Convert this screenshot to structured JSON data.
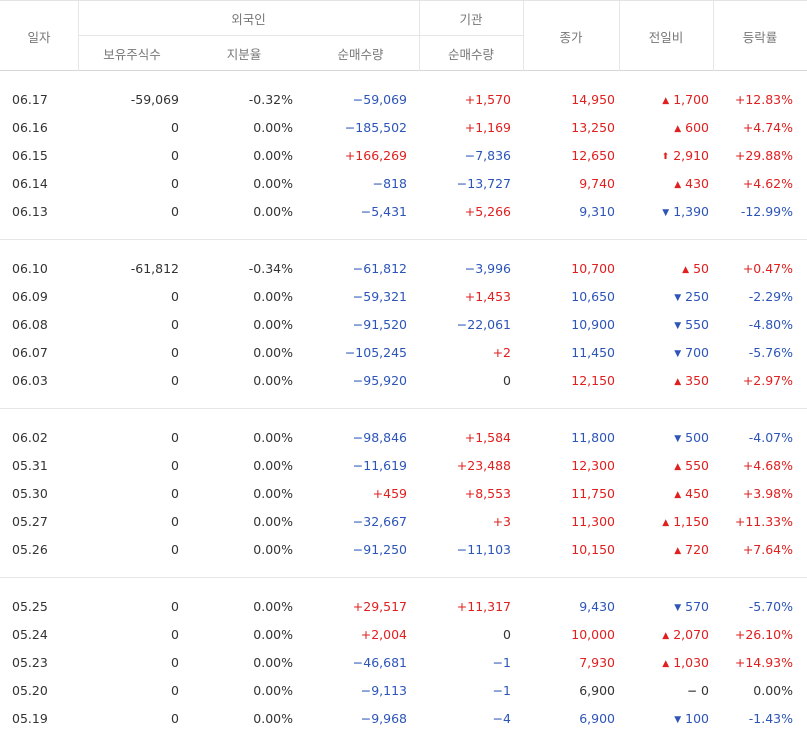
{
  "header": {
    "date": "일자",
    "foreign": "외국인",
    "institution": "기관",
    "close": "종가",
    "change": "전일비",
    "rate": "등락률",
    "holdings": "보유주식수",
    "ratio": "지분율",
    "foreign_net": "순매수량",
    "inst_net": "순매수량"
  },
  "groups": [
    {
      "rows": [
        {
          "date": "06.17",
          "holdings": "-59,069",
          "ratio": "-0.32%",
          "fnet": "−59,069",
          "fnet_sign": "neg",
          "inet": "+1,570",
          "inet_sign": "pos",
          "close": "14,950",
          "close_sign": "pos",
          "arrow": "up",
          "change": "1,700",
          "change_sign": "pos",
          "rate": "+12.83%",
          "rate_sign": "pos"
        },
        {
          "date": "06.16",
          "holdings": "0",
          "ratio": "0.00%",
          "fnet": "−185,502",
          "fnet_sign": "neg",
          "inet": "+1,169",
          "inet_sign": "pos",
          "close": "13,250",
          "close_sign": "pos",
          "arrow": "up",
          "change": "600",
          "change_sign": "pos",
          "rate": "+4.74%",
          "rate_sign": "pos"
        },
        {
          "date": "06.15",
          "holdings": "0",
          "ratio": "0.00%",
          "fnet": "+166,269",
          "fnet_sign": "pos",
          "inet": "−7,836",
          "inet_sign": "neg",
          "close": "12,650",
          "close_sign": "pos",
          "arrow": "limit-up",
          "change": "2,910",
          "change_sign": "pos",
          "rate": "+29.88%",
          "rate_sign": "pos"
        },
        {
          "date": "06.14",
          "holdings": "0",
          "ratio": "0.00%",
          "fnet": "−818",
          "fnet_sign": "neg",
          "inet": "−13,727",
          "inet_sign": "neg",
          "close": "9,740",
          "close_sign": "pos",
          "arrow": "up",
          "change": "430",
          "change_sign": "pos",
          "rate": "+4.62%",
          "rate_sign": "pos"
        },
        {
          "date": "06.13",
          "holdings": "0",
          "ratio": "0.00%",
          "fnet": "−5,431",
          "fnet_sign": "neg",
          "inet": "+5,266",
          "inet_sign": "pos",
          "close": "9,310",
          "close_sign": "neg",
          "arrow": "down",
          "change": "1,390",
          "change_sign": "neg",
          "rate": "-12.99%",
          "rate_sign": "neg"
        }
      ]
    },
    {
      "rows": [
        {
          "date": "06.10",
          "holdings": "-61,812",
          "ratio": "-0.34%",
          "fnet": "−61,812",
          "fnet_sign": "neg",
          "inet": "−3,996",
          "inet_sign": "neg",
          "close": "10,700",
          "close_sign": "pos",
          "arrow": "up",
          "change": "50",
          "change_sign": "pos",
          "rate": "+0.47%",
          "rate_sign": "pos"
        },
        {
          "date": "06.09",
          "holdings": "0",
          "ratio": "0.00%",
          "fnet": "−59,321",
          "fnet_sign": "neg",
          "inet": "+1,453",
          "inet_sign": "pos",
          "close": "10,650",
          "close_sign": "neg",
          "arrow": "down",
          "change": "250",
          "change_sign": "neg",
          "rate": "-2.29%",
          "rate_sign": "neg"
        },
        {
          "date": "06.08",
          "holdings": "0",
          "ratio": "0.00%",
          "fnet": "−91,520",
          "fnet_sign": "neg",
          "inet": "−22,061",
          "inet_sign": "neg",
          "close": "10,900",
          "close_sign": "neg",
          "arrow": "down",
          "change": "550",
          "change_sign": "neg",
          "rate": "-4.80%",
          "rate_sign": "neg"
        },
        {
          "date": "06.07",
          "holdings": "0",
          "ratio": "0.00%",
          "fnet": "−105,245",
          "fnet_sign": "neg",
          "inet": "+2",
          "inet_sign": "pos",
          "close": "11,450",
          "close_sign": "neg",
          "arrow": "down",
          "change": "700",
          "change_sign": "neg",
          "rate": "-5.76%",
          "rate_sign": "neg"
        },
        {
          "date": "06.03",
          "holdings": "0",
          "ratio": "0.00%",
          "fnet": "−95,920",
          "fnet_sign": "neg",
          "inet": "0",
          "inet_sign": "neu",
          "close": "12,150",
          "close_sign": "pos",
          "arrow": "up",
          "change": "350",
          "change_sign": "pos",
          "rate": "+2.97%",
          "rate_sign": "pos"
        }
      ]
    },
    {
      "rows": [
        {
          "date": "06.02",
          "holdings": "0",
          "ratio": "0.00%",
          "fnet": "−98,846",
          "fnet_sign": "neg",
          "inet": "+1,584",
          "inet_sign": "pos",
          "close": "11,800",
          "close_sign": "neg",
          "arrow": "down",
          "change": "500",
          "change_sign": "neg",
          "rate": "-4.07%",
          "rate_sign": "neg"
        },
        {
          "date": "05.31",
          "holdings": "0",
          "ratio": "0.00%",
          "fnet": "−11,619",
          "fnet_sign": "neg",
          "inet": "+23,488",
          "inet_sign": "pos",
          "close": "12,300",
          "close_sign": "pos",
          "arrow": "up",
          "change": "550",
          "change_sign": "pos",
          "rate": "+4.68%",
          "rate_sign": "pos"
        },
        {
          "date": "05.30",
          "holdings": "0",
          "ratio": "0.00%",
          "fnet": "+459",
          "fnet_sign": "pos",
          "inet": "+8,553",
          "inet_sign": "pos",
          "close": "11,750",
          "close_sign": "pos",
          "arrow": "up",
          "change": "450",
          "change_sign": "pos",
          "rate": "+3.98%",
          "rate_sign": "pos"
        },
        {
          "date": "05.27",
          "holdings": "0",
          "ratio": "0.00%",
          "fnet": "−32,667",
          "fnet_sign": "neg",
          "inet": "+3",
          "inet_sign": "pos",
          "close": "11,300",
          "close_sign": "pos",
          "arrow": "up",
          "change": "1,150",
          "change_sign": "pos",
          "rate": "+11.33%",
          "rate_sign": "pos"
        },
        {
          "date": "05.26",
          "holdings": "0",
          "ratio": "0.00%",
          "fnet": "−91,250",
          "fnet_sign": "neg",
          "inet": "−11,103",
          "inet_sign": "neg",
          "close": "10,150",
          "close_sign": "pos",
          "arrow": "up",
          "change": "720",
          "change_sign": "pos",
          "rate": "+7.64%",
          "rate_sign": "pos"
        }
      ]
    },
    {
      "rows": [
        {
          "date": "05.25",
          "holdings": "0",
          "ratio": "0.00%",
          "fnet": "+29,517",
          "fnet_sign": "pos",
          "inet": "+11,317",
          "inet_sign": "pos",
          "close": "9,430",
          "close_sign": "neg",
          "arrow": "down",
          "change": "570",
          "change_sign": "neg",
          "rate": "-5.70%",
          "rate_sign": "neg"
        },
        {
          "date": "05.24",
          "holdings": "0",
          "ratio": "0.00%",
          "fnet": "+2,004",
          "fnet_sign": "pos",
          "inet": "0",
          "inet_sign": "neu",
          "close": "10,000",
          "close_sign": "pos",
          "arrow": "up",
          "change": "2,070",
          "change_sign": "pos",
          "rate": "+26.10%",
          "rate_sign": "pos"
        },
        {
          "date": "05.23",
          "holdings": "0",
          "ratio": "0.00%",
          "fnet": "−46,681",
          "fnet_sign": "neg",
          "inet": "−1",
          "inet_sign": "neg",
          "close": "7,930",
          "close_sign": "pos",
          "arrow": "up",
          "change": "1,030",
          "change_sign": "pos",
          "rate": "+14.93%",
          "rate_sign": "pos"
        },
        {
          "date": "05.20",
          "holdings": "0",
          "ratio": "0.00%",
          "fnet": "−9,113",
          "fnet_sign": "neg",
          "inet": "−1",
          "inet_sign": "neg",
          "close": "6,900",
          "close_sign": "neu",
          "arrow": "same",
          "change": "0",
          "change_sign": "neu",
          "rate": "0.00%",
          "rate_sign": "neu"
        },
        {
          "date": "05.19",
          "holdings": "0",
          "ratio": "0.00%",
          "fnet": "−9,968",
          "fnet_sign": "neg",
          "inet": "−4",
          "inet_sign": "neg",
          "close": "6,900",
          "close_sign": "neg",
          "arrow": "down",
          "change": "100",
          "change_sign": "neg",
          "rate": "-1.43%",
          "rate_sign": "neg"
        }
      ]
    }
  ]
}
